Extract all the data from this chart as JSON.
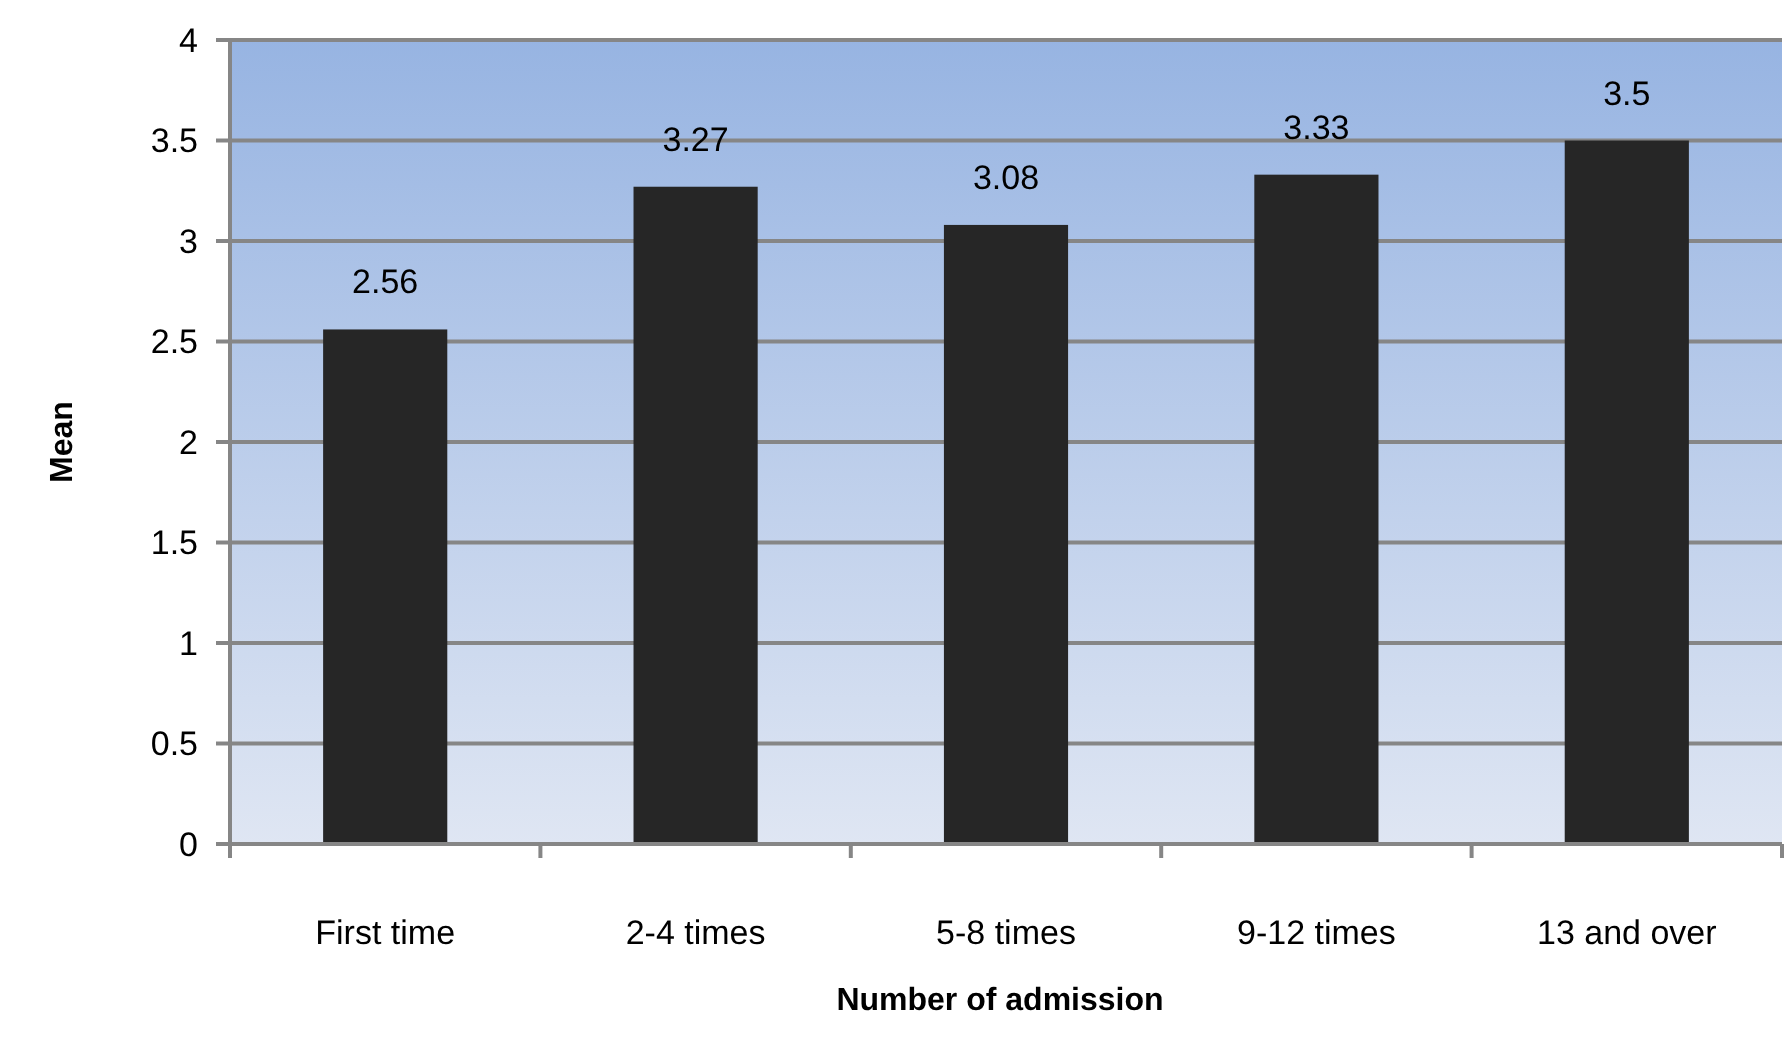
{
  "chart_data": {
    "type": "bar",
    "xlabel": "Number of admission",
    "ylabel": "Mean",
    "categories": [
      "First time",
      "2-4 times",
      "5-8 times",
      "9-12 times",
      "13 and over"
    ],
    "values": [
      2.56,
      3.27,
      3.08,
      3.33,
      3.5
    ],
    "color": "#262626",
    "ylim": [
      0,
      4
    ],
    "yticks": [
      0,
      0.5,
      1,
      1.5,
      2,
      2.5,
      3,
      3.5,
      4
    ],
    "grid": "y",
    "data_labels": true
  }
}
